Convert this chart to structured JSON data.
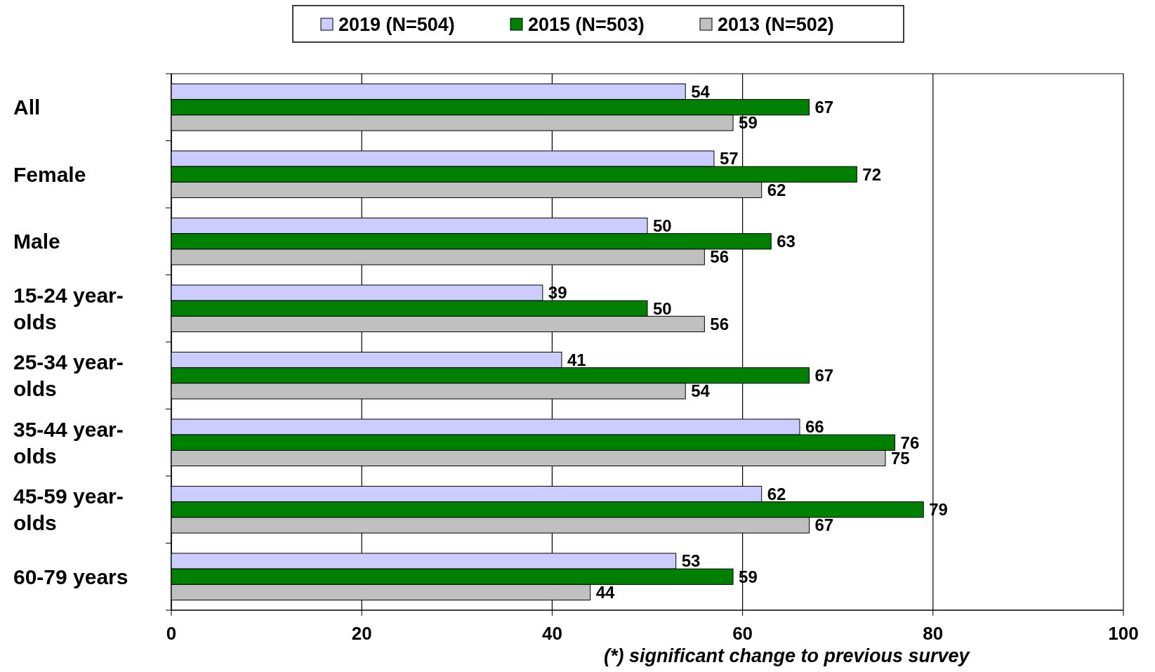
{
  "chart_data": {
    "type": "bar",
    "orientation": "horizontal",
    "categories": [
      "All",
      "Female",
      "Male",
      "15-24 year-olds",
      "25-34 year-olds",
      "35-44 year-olds",
      "45-59 year-olds",
      "60-79 years"
    ],
    "series": [
      {
        "name": "2019 (N=504)",
        "color": "#ccccff",
        "values": [
          54,
          57,
          50,
          39,
          41,
          66,
          62,
          53
        ]
      },
      {
        "name": "2015 (N=503)",
        "color": "#008000",
        "values": [
          67,
          72,
          63,
          50,
          67,
          76,
          79,
          59
        ]
      },
      {
        "name": "2013 (N=502)",
        "color": "#c0c0c0",
        "values": [
          59,
          62,
          56,
          56,
          54,
          75,
          67,
          44
        ]
      }
    ],
    "xlim": [
      0,
      100
    ],
    "xticks": [
      0,
      20,
      40,
      60,
      80,
      100
    ],
    "grid": "x",
    "legend": "top",
    "data_labels": true,
    "annotations": [
      "(*) significant change to previous survey"
    ]
  }
}
